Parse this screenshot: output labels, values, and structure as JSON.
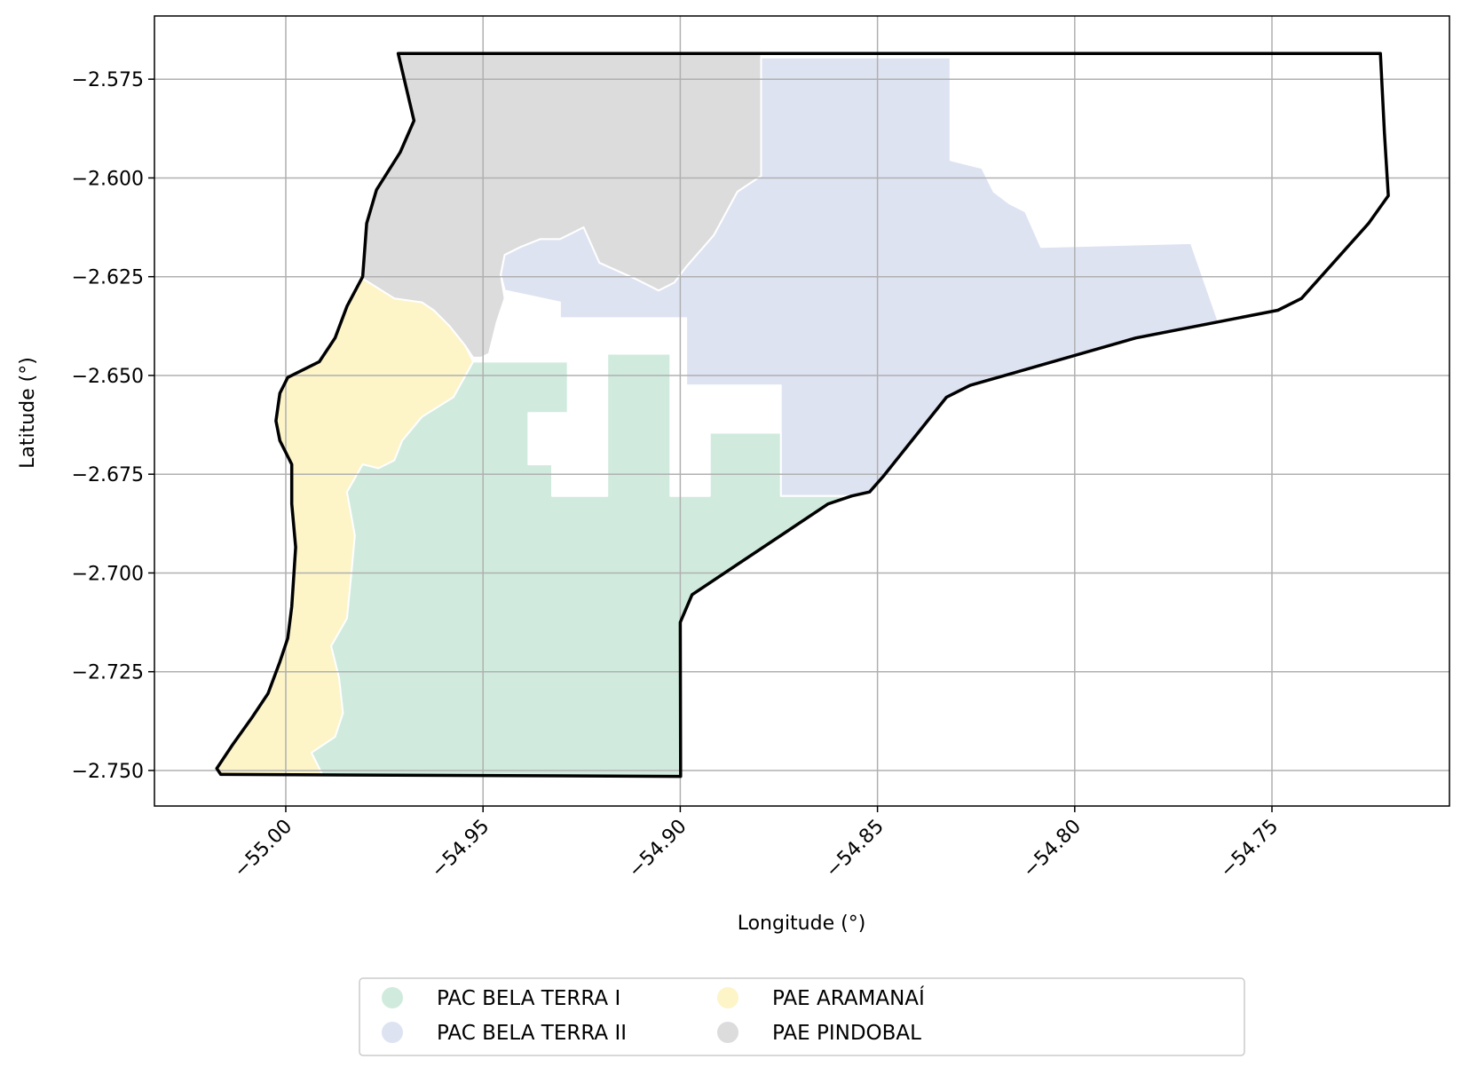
{
  "chart_data": {
    "type": "map",
    "xlabel": "Longitude (°)",
    "ylabel": "Latitude (°)",
    "xlim": [
      -55.0333,
      -54.705
    ],
    "ylim": [
      -2.759,
      -2.559
    ],
    "x_ticks": [
      {
        "value": -55.0,
        "label": "−55.00"
      },
      {
        "value": -54.95,
        "label": "−54.95"
      },
      {
        "value": -54.9,
        "label": "−54.90"
      },
      {
        "value": -54.85,
        "label": "−54.85"
      },
      {
        "value": -54.8,
        "label": "−54.80"
      },
      {
        "value": -54.75,
        "label": "−54.75"
      }
    ],
    "y_ticks": [
      {
        "value": -2.575,
        "label": "−2.575"
      },
      {
        "value": -2.6,
        "label": "−2.600"
      },
      {
        "value": -2.625,
        "label": "−2.625"
      },
      {
        "value": -2.65,
        "label": "−2.650"
      },
      {
        "value": -2.675,
        "label": "−2.675"
      },
      {
        "value": -2.7,
        "label": "−2.700"
      },
      {
        "value": -2.725,
        "label": "−2.725"
      },
      {
        "value": -2.75,
        "label": "−2.750"
      }
    ],
    "grid": true,
    "legend_position": "bottom-center",
    "legend": [
      {
        "label": "PAC BELA TERRA I",
        "color": "#d0ebde"
      },
      {
        "label": "PAC BELA TERRA II",
        "color": "#dee3f2"
      },
      {
        "label": "PAE ARAMANAÍ",
        "color": "#fdf4c8"
      },
      {
        "label": "PAE PINDOBAL",
        "color": "#dcdcdc"
      }
    ],
    "boundary": [
      [
        -54.9715,
        -2.5685
      ],
      [
        -54.9675,
        -2.5855
      ],
      [
        -54.971,
        -2.5935
      ],
      [
        -54.977,
        -2.603
      ],
      [
        -54.9795,
        -2.6115
      ],
      [
        -54.9805,
        -2.625
      ],
      [
        -54.9845,
        -2.6325
      ],
      [
        -54.9875,
        -2.6405
      ],
      [
        -54.9915,
        -2.6465
      ],
      [
        -54.9995,
        -2.6505
      ],
      [
        -55.0015,
        -2.6545
      ],
      [
        -55.0025,
        -2.6615
      ],
      [
        -55.0015,
        -2.6665
      ],
      [
        -54.9985,
        -2.6725
      ],
      [
        -54.9985,
        -2.6825
      ],
      [
        -54.9975,
        -2.6935
      ],
      [
        -54.9985,
        -2.7085
      ],
      [
        -54.9995,
        -2.7165
      ],
      [
        -55.0015,
        -2.7225
      ],
      [
        -55.0045,
        -2.7305
      ],
      [
        -55.0085,
        -2.7365
      ],
      [
        -55.0135,
        -2.7435
      ],
      [
        -55.0175,
        -2.7495
      ],
      [
        -55.0165,
        -2.751
      ],
      [
        -54.8999,
        -2.7515
      ],
      [
        -54.9,
        -2.7125
      ],
      [
        -54.897,
        -2.7055
      ],
      [
        -54.8625,
        -2.6825
      ],
      [
        -54.8565,
        -2.6805
      ],
      [
        -54.852,
        -2.6795
      ],
      [
        -54.8485,
        -2.6755
      ],
      [
        -54.8325,
        -2.6555
      ],
      [
        -54.8265,
        -2.6525
      ],
      [
        -54.7845,
        -2.6405
      ],
      [
        -54.7485,
        -2.6335
      ],
      [
        -54.7425,
        -2.6305
      ],
      [
        -54.7255,
        -2.6115
      ],
      [
        -54.7205,
        -2.6045
      ],
      [
        -54.7215,
        -2.5885
      ],
      [
        -54.7225,
        -2.5685
      ],
      [
        -54.9715,
        -2.5685
      ]
    ],
    "regions": [
      {
        "name": "PAE PINDOBAL",
        "color": "#dcdcdc",
        "polygon": [
          [
            -54.9715,
            -2.5685
          ],
          [
            -54.8795,
            -2.5685
          ],
          [
            -54.8795,
            -2.5995
          ],
          [
            -54.8855,
            -2.6035
          ],
          [
            -54.8915,
            -2.6145
          ],
          [
            -54.8985,
            -2.6225
          ],
          [
            -54.9015,
            -2.6265
          ],
          [
            -54.9055,
            -2.6285
          ],
          [
            -54.9115,
            -2.6255
          ],
          [
            -54.9205,
            -2.6215
          ],
          [
            -54.9245,
            -2.6125
          ],
          [
            -54.9305,
            -2.6155
          ],
          [
            -54.9355,
            -2.6155
          ],
          [
            -54.9405,
            -2.6175
          ],
          [
            -54.9445,
            -2.6195
          ],
          [
            -54.9455,
            -2.6245
          ],
          [
            -54.9445,
            -2.6305
          ],
          [
            -54.9465,
            -2.6365
          ],
          [
            -54.9485,
            -2.6445
          ],
          [
            -54.9505,
            -2.6455
          ],
          [
            -54.9525,
            -2.6455
          ],
          [
            -54.9545,
            -2.6425
          ],
          [
            -54.9585,
            -2.6375
          ],
          [
            -54.9625,
            -2.6335
          ],
          [
            -54.9655,
            -2.6315
          ],
          [
            -54.9725,
            -2.6305
          ],
          [
            -54.9805,
            -2.6255
          ],
          [
            -54.9795,
            -2.6115
          ],
          [
            -54.977,
            -2.603
          ],
          [
            -54.971,
            -2.5935
          ],
          [
            -54.9675,
            -2.5855
          ],
          [
            -54.9715,
            -2.5685
          ]
        ]
      },
      {
        "name": "PAC BELA TERRA II",
        "color": "#dee3f2",
        "polygon": [
          [
            -54.8795,
            -2.5695
          ],
          [
            -54.8315,
            -2.5695
          ],
          [
            -54.8315,
            -2.5955
          ],
          [
            -54.8235,
            -2.5975
          ],
          [
            -54.8205,
            -2.6035
          ],
          [
            -54.8165,
            -2.6065
          ],
          [
            -54.8125,
            -2.6085
          ],
          [
            -54.8085,
            -2.6175
          ],
          [
            -54.7705,
            -2.6165
          ],
          [
            -54.7635,
            -2.6365
          ],
          [
            -54.7845,
            -2.6405
          ],
          [
            -54.8265,
            -2.6525
          ],
          [
            -54.8325,
            -2.6555
          ],
          [
            -54.8485,
            -2.6755
          ],
          [
            -54.852,
            -2.6795
          ],
          [
            -54.8565,
            -2.6805
          ],
          [
            -54.8745,
            -2.6805
          ],
          [
            -54.8745,
            -2.6525
          ],
          [
            -54.8985,
            -2.6525
          ],
          [
            -54.8985,
            -2.6355
          ],
          [
            -54.9305,
            -2.6355
          ],
          [
            -54.9305,
            -2.6315
          ],
          [
            -54.9445,
            -2.6285
          ],
          [
            -54.9455,
            -2.6245
          ],
          [
            -54.9445,
            -2.6195
          ],
          [
            -54.9405,
            -2.6175
          ],
          [
            -54.9355,
            -2.6155
          ],
          [
            -54.9305,
            -2.6155
          ],
          [
            -54.9245,
            -2.6125
          ],
          [
            -54.9205,
            -2.6215
          ],
          [
            -54.9115,
            -2.6255
          ],
          [
            -54.9055,
            -2.6285
          ],
          [
            -54.9015,
            -2.6265
          ],
          [
            -54.8985,
            -2.6225
          ],
          [
            -54.8915,
            -2.6145
          ],
          [
            -54.8855,
            -2.6035
          ],
          [
            -54.8795,
            -2.5995
          ],
          [
            -54.8795,
            -2.5695
          ]
        ]
      },
      {
        "name": "PAE ARAMANAÍ",
        "color": "#fdf4c8",
        "polygon": [
          [
            -54.9805,
            -2.6255
          ],
          [
            -54.9725,
            -2.6305
          ],
          [
            -54.9655,
            -2.6315
          ],
          [
            -54.9625,
            -2.6335
          ],
          [
            -54.9585,
            -2.6375
          ],
          [
            -54.9545,
            -2.6425
          ],
          [
            -54.9525,
            -2.6465
          ],
          [
            -54.9575,
            -2.6555
          ],
          [
            -54.9655,
            -2.6605
          ],
          [
            -54.9705,
            -2.6665
          ],
          [
            -54.9725,
            -2.6715
          ],
          [
            -54.9765,
            -2.6735
          ],
          [
            -54.9805,
            -2.6725
          ],
          [
            -54.9845,
            -2.6795
          ],
          [
            -54.9825,
            -2.6905
          ],
          [
            -54.9835,
            -2.7015
          ],
          [
            -54.9845,
            -2.7115
          ],
          [
            -54.9885,
            -2.7185
          ],
          [
            -54.9865,
            -2.7265
          ],
          [
            -54.9855,
            -2.7355
          ],
          [
            -54.9875,
            -2.7415
          ],
          [
            -54.9935,
            -2.7455
          ],
          [
            -54.9905,
            -2.7515
          ],
          [
            -55.0165,
            -2.7515
          ],
          [
            -55.0175,
            -2.7495
          ],
          [
            -55.0135,
            -2.7435
          ],
          [
            -55.0085,
            -2.7365
          ],
          [
            -55.0045,
            -2.7305
          ],
          [
            -55.0015,
            -2.7225
          ],
          [
            -54.9995,
            -2.7165
          ],
          [
            -54.9985,
            -2.7085
          ],
          [
            -54.9975,
            -2.6935
          ],
          [
            -54.9985,
            -2.6825
          ],
          [
            -54.9985,
            -2.6725
          ],
          [
            -55.0015,
            -2.6665
          ],
          [
            -55.0025,
            -2.6615
          ],
          [
            -55.0015,
            -2.6545
          ],
          [
            -54.9995,
            -2.6505
          ],
          [
            -54.9915,
            -2.6465
          ],
          [
            -54.9875,
            -2.6405
          ],
          [
            -54.9845,
            -2.6325
          ],
          [
            -54.9805,
            -2.6255
          ]
        ]
      },
      {
        "name": "PAC BELA TERRA I",
        "color": "#d0ebde",
        "polygon": [
          [
            -54.9525,
            -2.6465
          ],
          [
            -54.9575,
            -2.6555
          ],
          [
            -54.9655,
            -2.6605
          ],
          [
            -54.9705,
            -2.6665
          ],
          [
            -54.9725,
            -2.6715
          ],
          [
            -54.9765,
            -2.6735
          ],
          [
            -54.9805,
            -2.6725
          ],
          [
            -54.9845,
            -2.6795
          ],
          [
            -54.9825,
            -2.6905
          ],
          [
            -54.9835,
            -2.7015
          ],
          [
            -54.9845,
            -2.7115
          ],
          [
            -54.9885,
            -2.7185
          ],
          [
            -54.9865,
            -2.7265
          ],
          [
            -54.9855,
            -2.7355
          ],
          [
            -54.9875,
            -2.7415
          ],
          [
            -54.9935,
            -2.7455
          ],
          [
            -54.9905,
            -2.7515
          ],
          [
            -54.8999,
            -2.7515
          ],
          [
            -54.9,
            -2.7125
          ],
          [
            -54.897,
            -2.7055
          ],
          [
            -54.8625,
            -2.6825
          ],
          [
            -54.8565,
            -2.6805
          ],
          [
            -54.8745,
            -2.6805
          ],
          [
            -54.8745,
            -2.6645
          ],
          [
            -54.8925,
            -2.6645
          ],
          [
            -54.8925,
            -2.6805
          ],
          [
            -54.9025,
            -2.6805
          ],
          [
            -54.9025,
            -2.6445
          ],
          [
            -54.9185,
            -2.6445
          ],
          [
            -54.9185,
            -2.6805
          ],
          [
            -54.9325,
            -2.6805
          ],
          [
            -54.9325,
            -2.6725
          ],
          [
            -54.9385,
            -2.6725
          ],
          [
            -54.9385,
            -2.6595
          ],
          [
            -54.9285,
            -2.6595
          ],
          [
            -54.9285,
            -2.6465
          ],
          [
            -54.9525,
            -2.6465
          ]
        ]
      }
    ]
  }
}
